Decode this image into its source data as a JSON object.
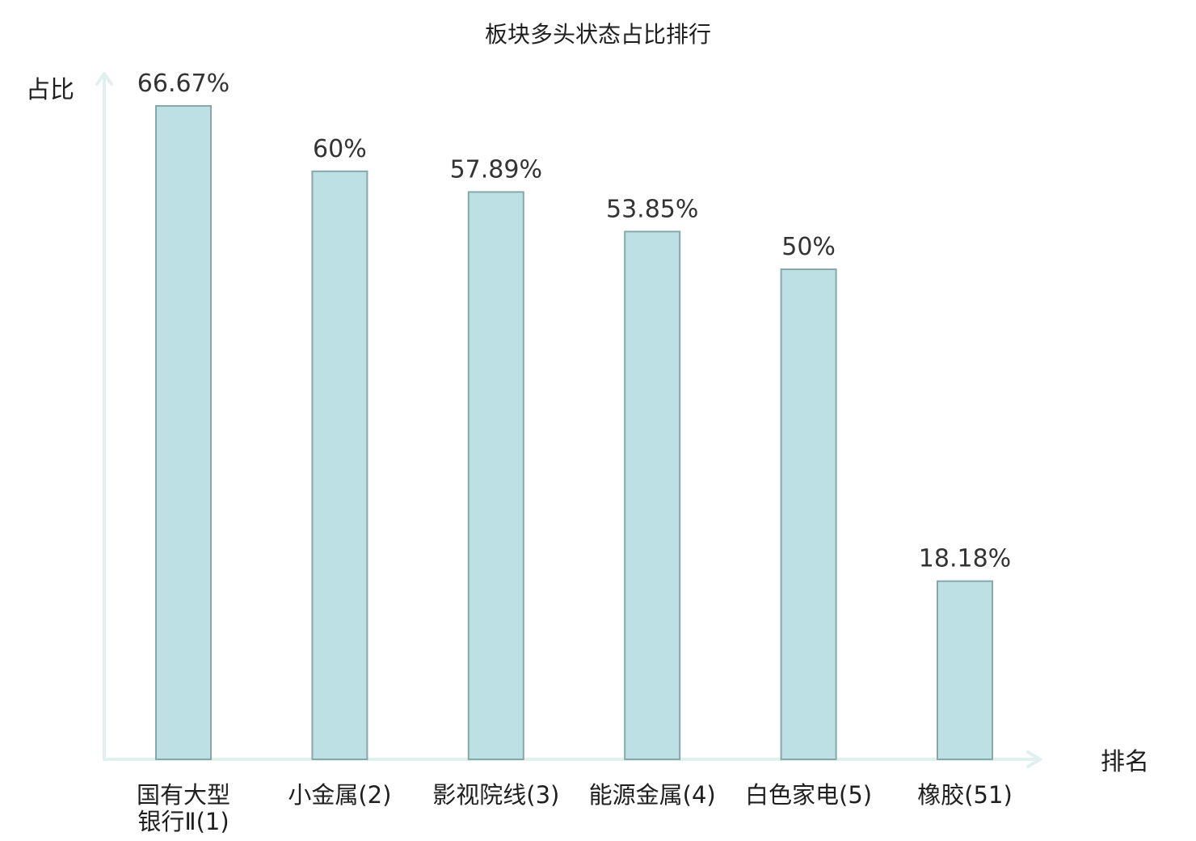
{
  "chart_data": {
    "type": "bar",
    "title": "板块多头状态占比排行",
    "xlabel": "排名",
    "ylabel": "占比",
    "ylim": [
      0,
      70
    ],
    "grid": false,
    "categories": [
      {
        "lines": [
          "国有大型",
          "银行Ⅱ(1)"
        ],
        "highlight": false
      },
      {
        "lines": [
          "小金属(2)"
        ],
        "highlight": false
      },
      {
        "lines": [
          "影视院线(3)"
        ],
        "highlight": false
      },
      {
        "lines": [
          "能源金属(4)"
        ],
        "highlight": false
      },
      {
        "lines": [
          "白色家电(5)"
        ],
        "highlight": false
      },
      {
        "lines": [
          "橡胶(51)"
        ],
        "highlight": true
      }
    ],
    "values": [
      66.67,
      60,
      57.89,
      53.85,
      50,
      18.18
    ],
    "value_labels": [
      "66.67%",
      "60%",
      "57.89%",
      "53.85%",
      "50%",
      "18.18%"
    ],
    "colors": {
      "bar_fill": "#bce0e3",
      "bar_stroke": "#86a8aa",
      "axis": "#dff0ee",
      "highlight_text": "#e8202a"
    }
  }
}
